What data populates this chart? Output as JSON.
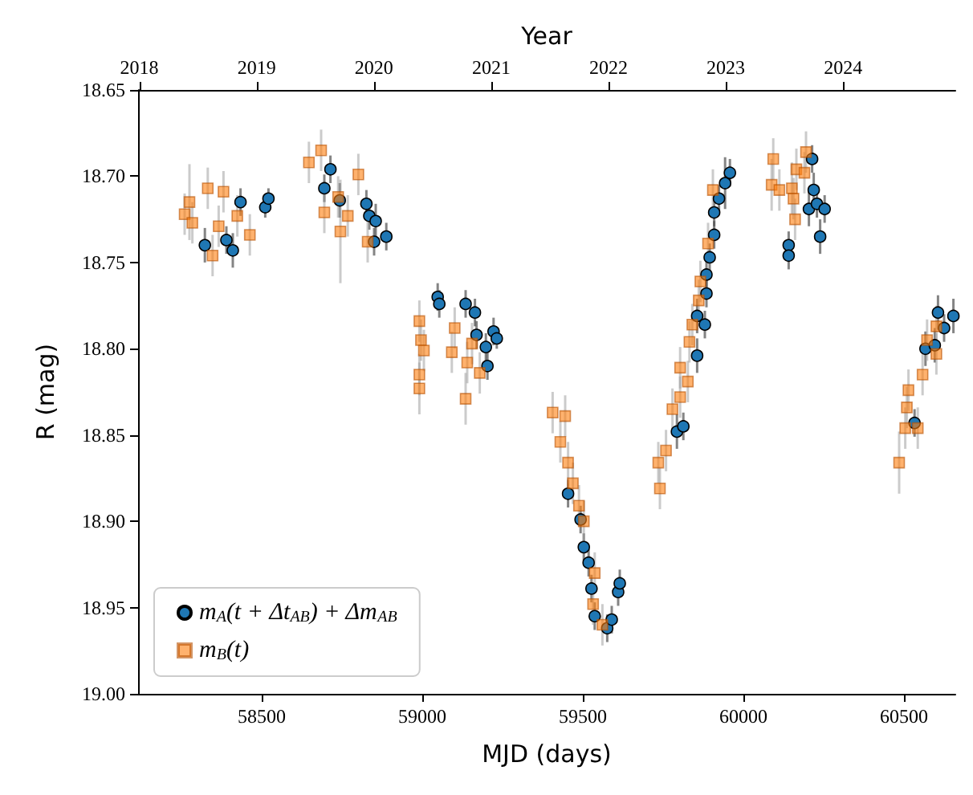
{
  "chart_data": {
    "type": "scatter",
    "xlabel": "MJD (days)",
    "ylabel": "R (mag)",
    "x2label": "Year",
    "xlim": [
      58115,
      60660
    ],
    "xticks": [
      58500,
      59000,
      59500,
      60000,
      60500
    ],
    "x2lim": [
      2017.989,
      2024.957
    ],
    "x2ticks": [
      2018,
      2019,
      2020,
      2021,
      2022,
      2023,
      2024
    ],
    "ylim": [
      19.0,
      18.65
    ],
    "yticks": [
      {
        "value": 18.65,
        "label": "18.65"
      },
      {
        "value": 18.7,
        "label": "18.70"
      },
      {
        "value": 18.75,
        "label": "18.75"
      },
      {
        "value": 18.8,
        "label": "18.80"
      },
      {
        "value": 18.85,
        "label": "18.85"
      },
      {
        "value": 18.9,
        "label": "18.90"
      },
      {
        "value": 18.95,
        "label": "18.95"
      },
      {
        "value": 19.0,
        "label": "19.00"
      }
    ],
    "grid": false,
    "legend": "bottom left",
    "series": [
      {
        "name": "m$_{A}$(t + Δt$_{AB}$) + Δm$_{AB}$",
        "color": "#1f77b4",
        "marker": "circle",
        "x": [
          58323,
          58390,
          58410,
          58434,
          58511,
          58521,
          58695,
          58714,
          58743,
          58826,
          58835,
          58850,
          58855,
          58888,
          59048,
          59053,
          59135,
          59164,
          59169,
          59198,
          59203,
          59222,
          59232,
          59454,
          59493,
          59503,
          59518,
          59527,
          59537,
          59576,
          59590,
          59610,
          59615,
          59793,
          59813,
          59856,
          59856,
          59880,
          59885,
          59885,
          59895,
          59909,
          59909,
          59924,
          59943,
          59958,
          60141,
          60141,
          60204,
          60214,
          60219,
          60229,
          60239,
          60253,
          60533,
          60567,
          60596,
          60606,
          60625,
          60654
        ],
        "values": [
          18.74,
          18.737,
          18.743,
          18.715,
          18.718,
          18.713,
          18.707,
          18.696,
          18.714,
          18.716,
          18.723,
          18.738,
          18.726,
          18.735,
          18.77,
          18.774,
          18.774,
          18.779,
          18.792,
          18.799,
          18.81,
          18.79,
          18.794,
          18.884,
          18.899,
          18.915,
          18.924,
          18.939,
          18.955,
          18.962,
          18.957,
          18.941,
          18.936,
          18.848,
          18.845,
          18.804,
          18.781,
          18.786,
          18.768,
          18.757,
          18.747,
          18.734,
          18.721,
          18.713,
          18.704,
          18.698,
          18.74,
          18.746,
          18.719,
          18.69,
          18.708,
          18.716,
          18.735,
          18.719,
          18.843,
          18.8,
          18.798,
          18.779,
          18.788,
          18.781
        ],
        "errors": [
          0.01,
          0.008,
          0.01,
          0.008,
          0.006,
          0.006,
          0.008,
          0.008,
          0.01,
          0.008,
          0.008,
          0.008,
          0.01,
          0.008,
          0.008,
          0.008,
          0.008,
          0.008,
          0.008,
          0.008,
          0.008,
          0.008,
          0.006,
          0.008,
          0.008,
          0.008,
          0.008,
          0.008,
          0.008,
          0.008,
          0.008,
          0.008,
          0.008,
          0.01,
          0.008,
          0.01,
          0.01,
          0.008,
          0.008,
          0.008,
          0.008,
          0.008,
          0.008,
          0.008,
          0.015,
          0.008,
          0.008,
          0.008,
          0.01,
          0.008,
          0.01,
          0.008,
          0.01,
          0.008,
          0.008,
          0.01,
          0.01,
          0.01,
          0.008,
          0.01
        ]
      },
      {
        "name": "m$_{B}$(t)",
        "color": "#ff7f0e",
        "marker": "square",
        "x": [
          58260,
          58275,
          58284,
          58332,
          58347,
          58366,
          58381,
          58424,
          58463,
          58647,
          58685,
          58695,
          58738,
          58745,
          58768,
          58801,
          58830,
          58991,
          58991,
          58991,
          58996,
          59005,
          59092,
          59101,
          59135,
          59140,
          59155,
          59179,
          59406,
          59430,
          59445,
          59454,
          59469,
          59488,
          59503,
          59532,
          59537,
          59561,
          59735,
          59740,
          59759,
          59779,
          59803,
          59803,
          59827,
          59832,
          59841,
          59861,
          59866,
          59890,
          59905,
          60088,
          60093,
          60112,
          60151,
          60156,
          60161,
          60165,
          60190,
          60195,
          60485,
          60504,
          60509,
          60514,
          60543,
          60558,
          60572,
          60601,
          60601
        ],
        "values": [
          18.722,
          18.715,
          18.727,
          18.707,
          18.746,
          18.729,
          18.709,
          18.723,
          18.734,
          18.692,
          18.685,
          18.721,
          18.712,
          18.732,
          18.723,
          18.699,
          18.738,
          18.784,
          18.815,
          18.823,
          18.795,
          18.801,
          18.802,
          18.788,
          18.829,
          18.808,
          18.797,
          18.814,
          18.837,
          18.854,
          18.839,
          18.866,
          18.878,
          18.891,
          18.9,
          18.948,
          18.93,
          18.96,
          18.866,
          18.881,
          18.859,
          18.835,
          18.828,
          18.811,
          18.819,
          18.796,
          18.786,
          18.772,
          18.761,
          18.739,
          18.708,
          18.705,
          18.69,
          18.708,
          18.707,
          18.713,
          18.725,
          18.696,
          18.698,
          18.686,
          18.866,
          18.846,
          18.834,
          18.824,
          18.846,
          18.815,
          18.795,
          18.803,
          18.787
        ],
        "errors": [
          0.012,
          0.022,
          0.012,
          0.012,
          0.012,
          0.012,
          0.012,
          0.012,
          0.012,
          0.012,
          0.012,
          0.012,
          0.012,
          0.03,
          0.012,
          0.012,
          0.012,
          0.012,
          0.012,
          0.015,
          0.012,
          0.012,
          0.012,
          0.012,
          0.015,
          0.012,
          0.012,
          0.012,
          0.012,
          0.012,
          0.012,
          0.012,
          0.012,
          0.012,
          0.012,
          0.012,
          0.012,
          0.012,
          0.012,
          0.012,
          0.012,
          0.012,
          0.012,
          0.012,
          0.012,
          0.012,
          0.012,
          0.012,
          0.012,
          0.012,
          0.012,
          0.015,
          0.012,
          0.012,
          0.015,
          0.012,
          0.012,
          0.012,
          0.012,
          0.012,
          0.018,
          0.012,
          0.012,
          0.012,
          0.012,
          0.012,
          0.012,
          0.012,
          0.012
        ]
      }
    ]
  }
}
